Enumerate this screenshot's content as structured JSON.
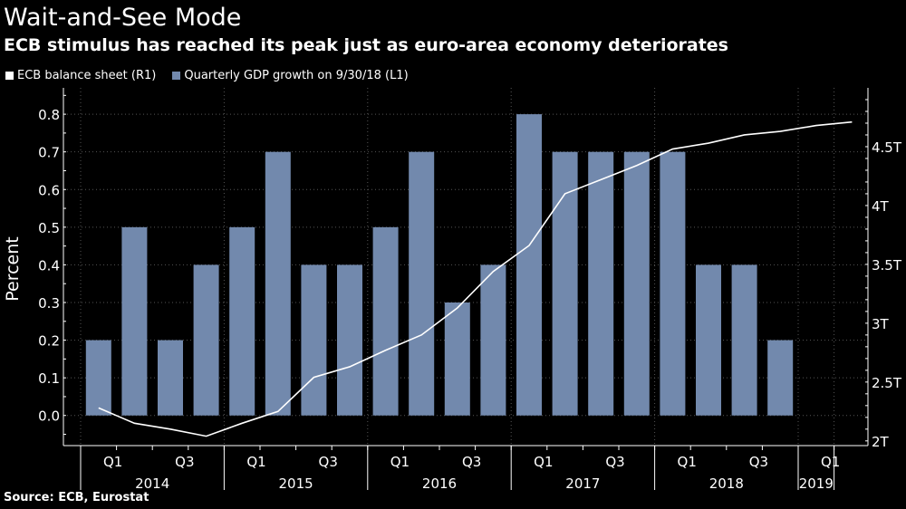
{
  "header": {
    "title": "Wait-and-See Mode",
    "subtitle": "ECB stimulus has reached its peak just as euro-area economy deteriorates"
  },
  "footer": {
    "source": "Source: ECB, Eurostat"
  },
  "colors": {
    "background": "#000000",
    "bar": "#7289ad",
    "line": "#ffffff",
    "grid": "#555555",
    "text": "#ffffff"
  },
  "chart_data": {
    "type": "bar",
    "legend_position": "top-left",
    "grid": true,
    "series": [
      {
        "name": "Quarterly GDP growth on 9/30/18 (L1)",
        "type": "bar",
        "axis": "left",
        "values": [
          0.2,
          0.5,
          0.2,
          0.4,
          0.5,
          0.7,
          0.4,
          0.4,
          0.5,
          0.7,
          0.3,
          0.4,
          0.8,
          0.7,
          0.7,
          0.7,
          0.7,
          0.4,
          0.4,
          0.2
        ]
      },
      {
        "name": "ECB balance sheet (R1)",
        "type": "line",
        "axis": "right",
        "values": [
          2.28,
          2.15,
          2.1,
          2.04,
          2.15,
          2.25,
          2.54,
          2.63,
          2.77,
          2.9,
          3.13,
          3.44,
          3.66,
          4.1,
          4.22,
          4.34,
          4.48,
          4.53,
          4.6,
          4.63,
          4.68,
          4.71
        ]
      }
    ],
    "left_axis": {
      "label": "Percent",
      "ylim": [
        -0.08,
        0.87
      ],
      "ticks": [
        0.0,
        0.1,
        0.2,
        0.3,
        0.4,
        0.5,
        0.6,
        0.7,
        0.8
      ],
      "tick_labels": [
        "0.0",
        "0.1",
        "0.2",
        "0.3",
        "0.4",
        "0.5",
        "0.6",
        "0.7",
        "0.8"
      ]
    },
    "right_axis": {
      "ylim": [
        1.96,
        5.0
      ],
      "ticks": [
        2,
        2.5,
        3,
        3.5,
        4,
        4.5
      ],
      "tick_labels": [
        "2T",
        "2.5T",
        "3T",
        "3.5T",
        "4T",
        "4.5T"
      ]
    },
    "x_axis": {
      "quarters": 22,
      "quarter_labels": [
        {
          "quarter": 0,
          "label": "Q1"
        },
        {
          "quarter": 2,
          "label": "Q3"
        },
        {
          "quarter": 4,
          "label": "Q1"
        },
        {
          "quarter": 6,
          "label": "Q3"
        },
        {
          "quarter": 8,
          "label": "Q1"
        },
        {
          "quarter": 10,
          "label": "Q3"
        },
        {
          "quarter": 12,
          "label": "Q1"
        },
        {
          "quarter": 14,
          "label": "Q3"
        },
        {
          "quarter": 16,
          "label": "Q1"
        },
        {
          "quarter": 18,
          "label": "Q3"
        },
        {
          "quarter": 20,
          "label": "Q1"
        }
      ],
      "years": [
        {
          "label": "2014",
          "start": 0,
          "end": 4
        },
        {
          "label": "2015",
          "start": 4,
          "end": 8
        },
        {
          "label": "2016",
          "start": 8,
          "end": 12
        },
        {
          "label": "2017",
          "start": 12,
          "end": 16
        },
        {
          "label": "2018",
          "start": 16,
          "end": 20
        },
        {
          "label": "2019",
          "start": 20,
          "end": 21
        }
      ]
    }
  }
}
